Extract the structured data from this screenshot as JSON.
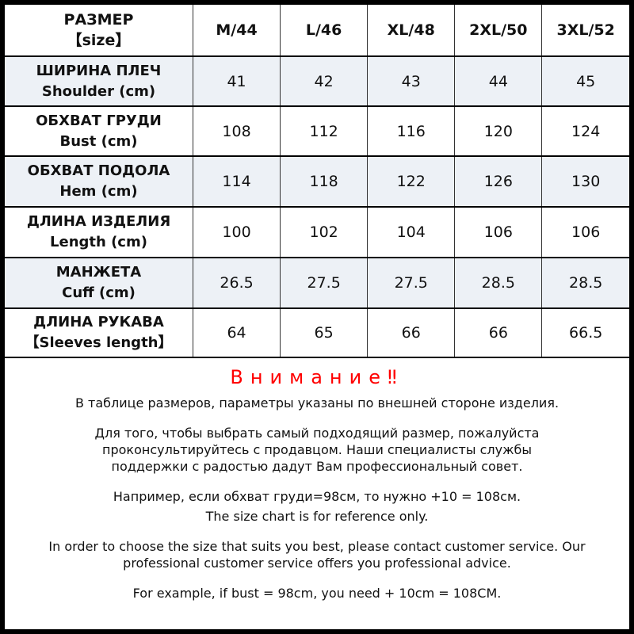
{
  "header": {
    "label_ru": "РАЗМЕР",
    "label_en": "【size】",
    "sizes": [
      "M/44",
      "L/46",
      "XL/48",
      "2XL/50",
      "3XL/52"
    ]
  },
  "rows": [
    {
      "ru": "ШИРИНА  ПЛЕЧ",
      "en": "Shoulder (cm)",
      "values": [
        "41",
        "42",
        "43",
        "44",
        "45"
      ]
    },
    {
      "ru": "ОБХВАТ ГРУДИ",
      "en": "Bust (cm)",
      "values": [
        "108",
        "112",
        "116",
        "120",
        "124"
      ]
    },
    {
      "ru": "ОБХВАТ ПОДОЛА",
      "en": "Hem (cm)",
      "values": [
        "114",
        "118",
        "122",
        "126",
        "130"
      ]
    },
    {
      "ru": "ДЛИНА  ИЗДЕЛИЯ",
      "en": "Length (cm)",
      "values": [
        "100",
        "102",
        "104",
        "106",
        "106"
      ]
    },
    {
      "ru": "МАНЖЕТА",
      "en": "Cuff (cm)",
      "values": [
        "26.5",
        "27.5",
        "27.5",
        "28.5",
        "28.5"
      ]
    },
    {
      "ru": "ДЛИНА  РУКАВА",
      "en": "【Sleeves length】",
      "values": [
        "64",
        "65",
        "66",
        "66",
        "66.5"
      ]
    }
  ],
  "warning": "Внимание‼",
  "notes": [
    "В таблице размеров, параметры указаны по внешней стороне изделия.",
    "Для того, чтобы выбрать самый подходящий размер, пожалуйста проконсультируйтесь с продавцом. Наши специалисты службы поддержки с радостью дадут Вам профессиональный совет.",
    "Например, если обхват груди=98см, то нужно +10 = 108см.",
    "The size chart is for reference only.",
    "In order to choose the size that suits you best, please contact customer service. Our professional customer service offers you professional advice.",
    "For example, if bust = 98cm, you need + 10cm = 108CM."
  ],
  "colors": {
    "shade": "#edf1f6",
    "warning": "#ff0000",
    "border": "#000000"
  }
}
